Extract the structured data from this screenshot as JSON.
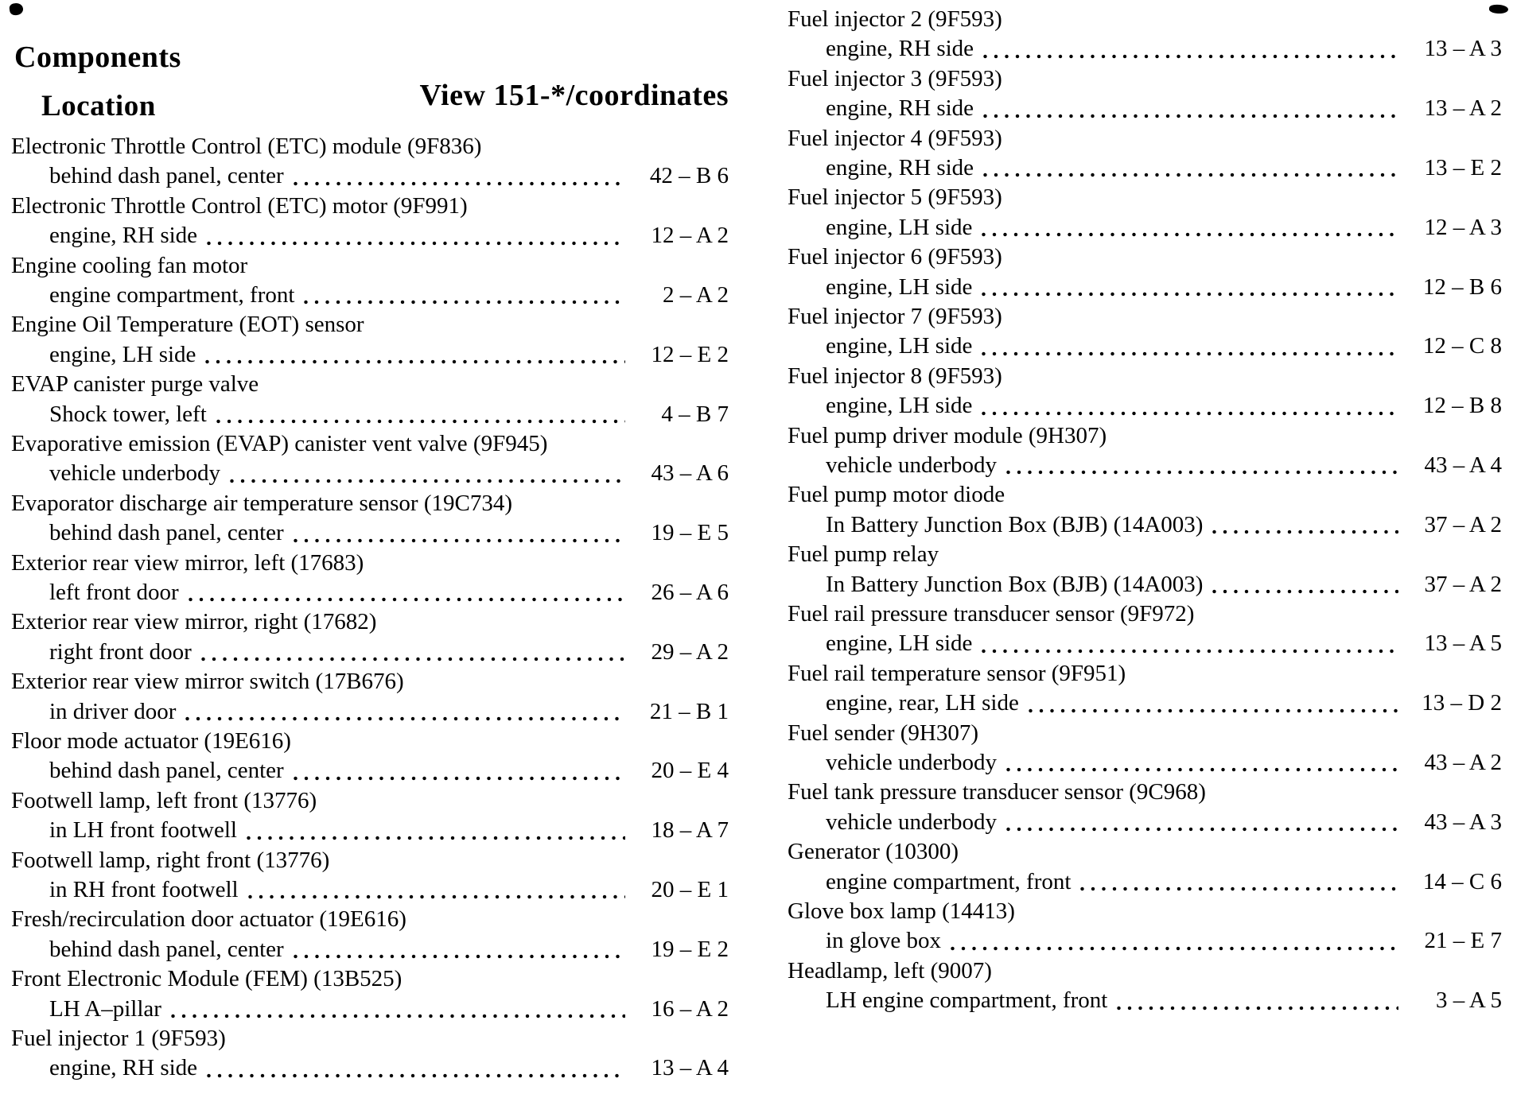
{
  "header": {
    "title": "Components",
    "location_label": "Location",
    "view_label": "View 151-*/coordinates"
  },
  "left_column": [
    {
      "name": "Electronic Throttle Control (ETC) module (9F836)",
      "location": "behind dash panel, center",
      "coord": "42 – B 6"
    },
    {
      "name": "Electronic Throttle Control (ETC) motor (9F991)",
      "location": "engine, RH side",
      "coord": "12 – A 2"
    },
    {
      "name": "Engine cooling fan motor",
      "location": "engine compartment, front",
      "coord": "2 – A 2"
    },
    {
      "name": "Engine Oil Temperature (EOT) sensor",
      "location": "engine, LH side",
      "coord": "12 – E 2"
    },
    {
      "name": "EVAP canister purge valve",
      "location": "Shock tower, left",
      "coord": "4 – B 7"
    },
    {
      "name": "Evaporative emission (EVAP) canister vent valve (9F945)",
      "location": "vehicle underbody",
      "coord": "43 – A 6"
    },
    {
      "name": "Evaporator discharge air temperature sensor (19C734)",
      "location": "behind dash panel, center",
      "coord": "19 – E 5"
    },
    {
      "name": "Exterior rear view mirror, left (17683)",
      "location": "left front door",
      "coord": "26 – A 6"
    },
    {
      "name": "Exterior rear view mirror, right (17682)",
      "location": "right front door",
      "coord": "29 – A 2"
    },
    {
      "name": "Exterior rear view mirror switch (17B676)",
      "location": "in driver door",
      "coord": "21 – B 1"
    },
    {
      "name": "Floor mode actuator (19E616)",
      "location": "behind dash panel, center",
      "coord": "20 – E 4"
    },
    {
      "name": "Footwell lamp, left front (13776)",
      "location": "in LH front footwell",
      "coord": "18 – A 7"
    },
    {
      "name": "Footwell lamp, right front (13776)",
      "location": "in RH front footwell",
      "coord": "20 – E 1"
    },
    {
      "name": "Fresh/recirculation door actuator (19E616)",
      "location": "behind dash panel, center",
      "coord": "19 – E 2"
    },
    {
      "name": "Front Electronic Module (FEM) (13B525)",
      "location": "LH A–pillar",
      "coord": "16 – A 2"
    },
    {
      "name": "Fuel injector 1 (9F593)",
      "location": "engine, RH side",
      "coord": "13 – A 4"
    }
  ],
  "right_column": [
    {
      "name": "Fuel injector 2 (9F593)",
      "location": "engine, RH side",
      "coord": "13 – A 3"
    },
    {
      "name": "Fuel injector 3 (9F593)",
      "location": "engine, RH side",
      "coord": "13 – A 2"
    },
    {
      "name": "Fuel injector 4 (9F593)",
      "location": "engine, RH side",
      "coord": "13 – E 2"
    },
    {
      "name": "Fuel injector 5 (9F593)",
      "location": "engine, LH side",
      "coord": "12 – A 3"
    },
    {
      "name": "Fuel injector 6 (9F593)",
      "location": "engine, LH side",
      "coord": "12 – B 6"
    },
    {
      "name": "Fuel injector 7 (9F593)",
      "location": "engine, LH side",
      "coord": "12 – C 8"
    },
    {
      "name": "Fuel injector 8 (9F593)",
      "location": "engine, LH side",
      "coord": "12 – B 8"
    },
    {
      "name": "Fuel pump driver module (9H307)",
      "location": "vehicle underbody",
      "coord": "43 – A 4"
    },
    {
      "name": "Fuel pump motor diode",
      "location": "In Battery Junction Box (BJB) (14A003)",
      "coord": "37 – A 2"
    },
    {
      "name": "Fuel pump relay",
      "location": "In Battery Junction Box (BJB) (14A003)",
      "coord": "37 – A 2"
    },
    {
      "name": "Fuel rail pressure transducer sensor (9F972)",
      "location": "engine, LH side",
      "coord": "13 – A 5"
    },
    {
      "name": "Fuel rail temperature sensor (9F951)",
      "location": "engine, rear, LH side",
      "coord": "13 – D 2"
    },
    {
      "name": "Fuel sender (9H307)",
      "location": "vehicle underbody",
      "coord": "43 – A 2"
    },
    {
      "name": "Fuel tank pressure transducer sensor (9C968)",
      "location": "vehicle underbody",
      "coord": "43 – A 3"
    },
    {
      "name": "Generator (10300)",
      "location": "engine compartment, front",
      "coord": "14 – C 6"
    },
    {
      "name": "Glove box lamp (14413)",
      "location": "in glove box",
      "coord": "21 – E 7"
    },
    {
      "name": "Headlamp, left (9007)",
      "location": "LH engine compartment, front",
      "coord": "3 – A 5"
    }
  ]
}
